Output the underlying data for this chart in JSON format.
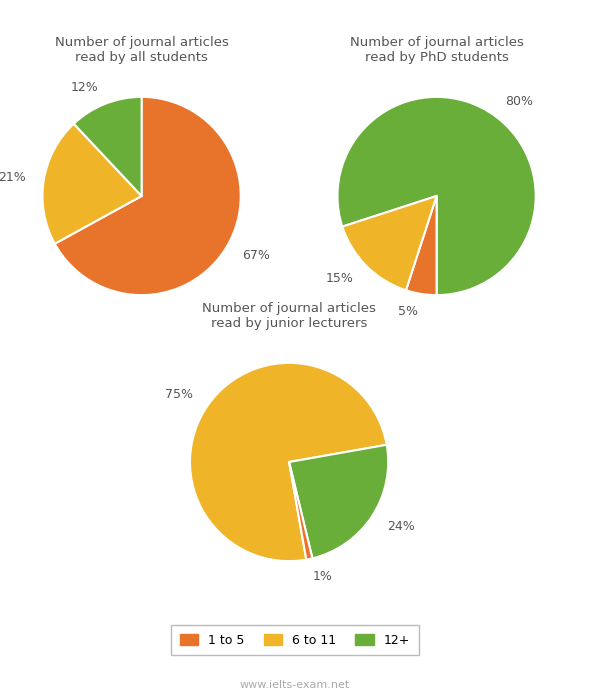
{
  "chart1": {
    "title": "Number of journal articles\nread by all students",
    "values": [
      67,
      21,
      12
    ],
    "labels": [
      "67%",
      "21%",
      "12%"
    ],
    "colors": [
      "#E8732A",
      "#F0B429",
      "#6AAE3A"
    ],
    "startangle": 90
  },
  "chart2": {
    "title": "Number of journal articles\nread by PhD students",
    "values": [
      80,
      5,
      15
    ],
    "labels": [
      "80%",
      "5%",
      "15%"
    ],
    "colors": [
      "#6AAE3A",
      "#E8732A",
      "#F0B429"
    ],
    "startangle": -162
  },
  "chart3": {
    "title": "Number of journal articles\nread by junior lecturers",
    "values": [
      75,
      24,
      1
    ],
    "labels": [
      "75%",
      "24%",
      "1%"
    ],
    "colors": [
      "#F0B429",
      "#6AAE3A",
      "#E8732A"
    ],
    "startangle": -80
  },
  "legend_labels": [
    "1 to 5",
    "6 to 11",
    "12+"
  ],
  "legend_colors": [
    "#E8732A",
    "#F0B429",
    "#6AAE3A"
  ],
  "watermark": "www.ielts-exam.net",
  "background_color": "#FFFFFF"
}
